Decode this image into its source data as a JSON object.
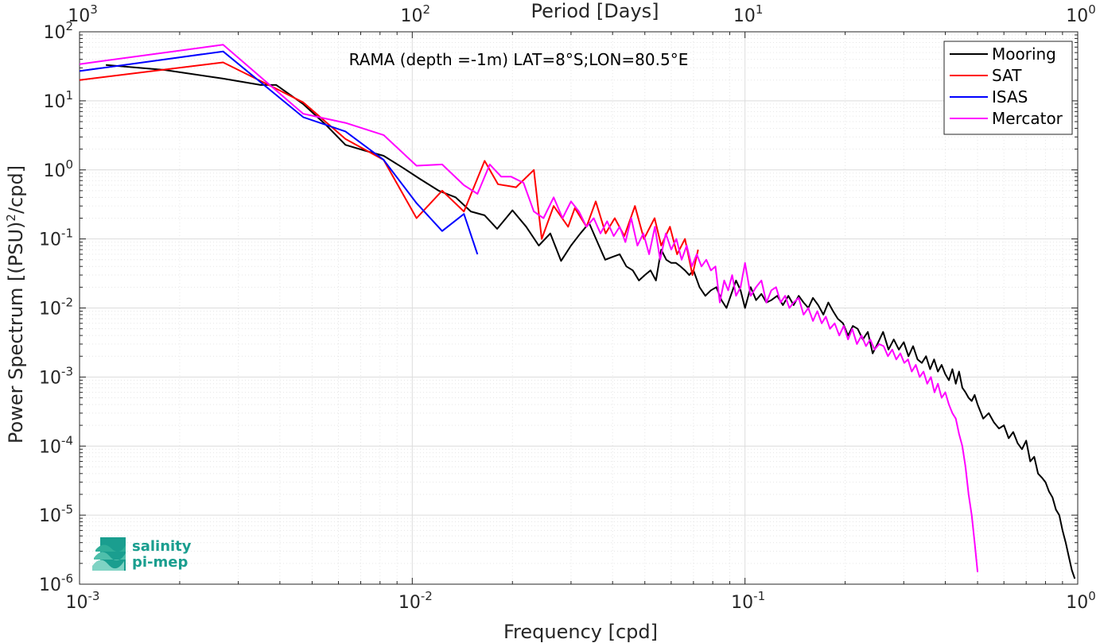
{
  "chart_data": {
    "type": "line",
    "title": "",
    "annotation": "RAMA (depth =-1m) LAT=8°S;LON=80.5°E",
    "xlabel": "Frequency [cpd]",
    "ylabel": "Power Spectrum [(PSU)²/cpd]",
    "ylabel_parts": {
      "before": "Power Spectrum [(PSU)",
      "sup": "2",
      "after": "/cpd]"
    },
    "top_xlabel": "Period [Days]",
    "xscale": "log",
    "yscale": "log",
    "xlim": [
      0.001,
      1
    ],
    "ylim": [
      1e-06,
      100
    ],
    "grid": true,
    "legend_position": "top-right",
    "x_ticks": [
      {
        "value": 0.001,
        "base": "10",
        "exp": "-3"
      },
      {
        "value": 0.01,
        "base": "10",
        "exp": "-2"
      },
      {
        "value": 0.1,
        "base": "10",
        "exp": "-1"
      },
      {
        "value": 1,
        "base": "10",
        "exp": "0"
      }
    ],
    "y_ticks": [
      {
        "value": 100,
        "base": "10",
        "exp": "2"
      },
      {
        "value": 10,
        "base": "10",
        "exp": "1"
      },
      {
        "value": 1,
        "base": "10",
        "exp": "0"
      },
      {
        "value": 0.1,
        "base": "10",
        "exp": "-1"
      },
      {
        "value": 0.01,
        "base": "10",
        "exp": "-2"
      },
      {
        "value": 0.001,
        "base": "10",
        "exp": "-3"
      },
      {
        "value": 0.0001,
        "base": "10",
        "exp": "-4"
      },
      {
        "value": 1e-05,
        "base": "10",
        "exp": "-5"
      },
      {
        "value": 1e-06,
        "base": "10",
        "exp": "-6"
      }
    ],
    "top_ticks": [
      {
        "value": 0.001,
        "base": "10",
        "exp": "3"
      },
      {
        "value": 0.01,
        "base": "10",
        "exp": "2"
      },
      {
        "value": 0.1,
        "base": "10",
        "exp": "1"
      },
      {
        "value": 1,
        "base": "10",
        "exp": "0"
      }
    ],
    "series": [
      {
        "name": "Mooring",
        "color": "#000000",
        "x": [
          0.0012,
          0.0018,
          0.0027,
          0.0035,
          0.0039,
          0.0047,
          0.0055,
          0.0063,
          0.0072,
          0.0082,
          0.0093,
          0.0105,
          0.012,
          0.0135,
          0.015,
          0.0165,
          0.018,
          0.02,
          0.022,
          0.024,
          0.026,
          0.028,
          0.03,
          0.032,
          0.034,
          0.036,
          0.038,
          0.04,
          0.042,
          0.044,
          0.046,
          0.048,
          0.05,
          0.052,
          0.054,
          0.056,
          0.058,
          0.06,
          0.062,
          0.064,
          0.066,
          0.068,
          0.07,
          0.073,
          0.076,
          0.079,
          0.082,
          0.085,
          0.088,
          0.091,
          0.094,
          0.097,
          0.1,
          0.104,
          0.108,
          0.112,
          0.116,
          0.12,
          0.125,
          0.13,
          0.135,
          0.14,
          0.145,
          0.15,
          0.155,
          0.16,
          0.166,
          0.172,
          0.178,
          0.184,
          0.19,
          0.197,
          0.204,
          0.211,
          0.218,
          0.226,
          0.234,
          0.242,
          0.25,
          0.26,
          0.27,
          0.28,
          0.29,
          0.3,
          0.31,
          0.32,
          0.33,
          0.34,
          0.35,
          0.36,
          0.37,
          0.38,
          0.39,
          0.4,
          0.41,
          0.42,
          0.43,
          0.44,
          0.45,
          0.46,
          0.47,
          0.48,
          0.49,
          0.5,
          0.52,
          0.54,
          0.56,
          0.58,
          0.6,
          0.62,
          0.64,
          0.66,
          0.68,
          0.7,
          0.72,
          0.74,
          0.76,
          0.78,
          0.8,
          0.82,
          0.84,
          0.86,
          0.88,
          0.9,
          0.92,
          0.94,
          0.96,
          0.98
        ],
        "y": [
          33,
          28,
          21,
          17,
          17,
          9,
          4.5,
          2.3,
          1.9,
          1.6,
          1.1,
          0.75,
          0.5,
          0.4,
          0.25,
          0.22,
          0.14,
          0.26,
          0.15,
          0.08,
          0.12,
          0.048,
          0.08,
          0.12,
          0.17,
          0.09,
          0.05,
          0.055,
          0.06,
          0.04,
          0.035,
          0.025,
          0.03,
          0.035,
          0.025,
          0.07,
          0.05,
          0.045,
          0.045,
          0.04,
          0.035,
          0.03,
          0.035,
          0.02,
          0.015,
          0.018,
          0.02,
          0.013,
          0.01,
          0.016,
          0.025,
          0.018,
          0.01,
          0.02,
          0.013,
          0.016,
          0.012,
          0.013,
          0.015,
          0.011,
          0.015,
          0.011,
          0.015,
          0.012,
          0.01,
          0.014,
          0.011,
          0.008,
          0.012,
          0.009,
          0.007,
          0.006,
          0.004,
          0.0055,
          0.005,
          0.0035,
          0.0045,
          0.0022,
          0.003,
          0.0045,
          0.0025,
          0.0035,
          0.0025,
          0.0032,
          0.002,
          0.0028,
          0.0018,
          0.0016,
          0.002,
          0.0013,
          0.0018,
          0.0012,
          0.0015,
          0.0011,
          0.0009,
          0.0013,
          0.0008,
          0.0012,
          0.0007,
          0.0006,
          0.0005,
          0.00045,
          0.00055,
          0.0004,
          0.00025,
          0.0003,
          0.00022,
          0.00018,
          0.0002,
          0.00013,
          0.00016,
          0.00011,
          9e-05,
          0.00012,
          6e-05,
          7e-05,
          4e-05,
          3.5e-05,
          3e-05,
          2.2e-05,
          1.8e-05,
          1.2e-05,
          1e-05,
          6e-06,
          4e-06,
          2.5e-06,
          1.6e-06,
          1.2e-06
        ]
      },
      {
        "name": "SAT",
        "color": "#ff0000",
        "x": [
          0.001,
          0.0027,
          0.0039,
          0.0047,
          0.0063,
          0.0082,
          0.0103,
          0.0123,
          0.0143,
          0.0165,
          0.0181,
          0.0205,
          0.0232,
          0.0245,
          0.0266,
          0.0294,
          0.0308,
          0.0334,
          0.0356,
          0.0381,
          0.0406,
          0.0434,
          0.0467,
          0.0497,
          0.0535,
          0.056,
          0.0595,
          0.0625,
          0.066,
          0.0695,
          0.0723
        ],
        "y": [
          20,
          36,
          15,
          9.5,
          2.8,
          1.4,
          0.2,
          0.5,
          0.25,
          1.35,
          0.62,
          0.56,
          1.0,
          0.1,
          0.3,
          0.15,
          0.28,
          0.15,
          0.35,
          0.12,
          0.2,
          0.11,
          0.3,
          0.1,
          0.2,
          0.08,
          0.15,
          0.06,
          0.1,
          0.03,
          0.07
        ]
      },
      {
        "name": "ISAS",
        "color": "#0000ff",
        "x": [
          0.001,
          0.0027,
          0.0047,
          0.0063,
          0.0082,
          0.0103,
          0.0123,
          0.0143,
          0.0157
        ],
        "y": [
          27,
          52,
          5.8,
          3.6,
          1.4,
          0.33,
          0.13,
          0.23,
          0.06
        ]
      },
      {
        "name": "Mercator",
        "color": "#ff00ff",
        "x": [
          0.001,
          0.0027,
          0.0047,
          0.0063,
          0.0082,
          0.0103,
          0.0123,
          0.0143,
          0.0157,
          0.0171,
          0.0185,
          0.0198,
          0.0216,
          0.0232,
          0.0248,
          0.0266,
          0.0283,
          0.03,
          0.0317,
          0.0334,
          0.0351,
          0.0368,
          0.0385,
          0.0403,
          0.042,
          0.0437,
          0.0455,
          0.0475,
          0.0495,
          0.0515,
          0.0536,
          0.0556,
          0.0578,
          0.06,
          0.0622,
          0.0645,
          0.0668,
          0.0692,
          0.0716,
          0.074,
          0.0765,
          0.079,
          0.0815,
          0.084,
          0.0866,
          0.089,
          0.0915,
          0.094,
          0.097,
          0.1,
          0.104,
          0.108,
          0.112,
          0.116,
          0.12,
          0.124,
          0.128,
          0.132,
          0.136,
          0.14,
          0.145,
          0.15,
          0.155,
          0.16,
          0.165,
          0.17,
          0.175,
          0.18,
          0.186,
          0.192,
          0.198,
          0.204,
          0.21,
          0.217,
          0.224,
          0.231,
          0.238,
          0.245,
          0.253,
          0.261,
          0.269,
          0.277,
          0.285,
          0.293,
          0.301,
          0.309,
          0.317,
          0.326,
          0.335,
          0.344,
          0.353,
          0.362,
          0.371,
          0.38,
          0.39,
          0.4,
          0.41,
          0.42,
          0.43,
          0.44,
          0.45,
          0.46,
          0.47,
          0.48,
          0.49,
          0.5
        ],
        "y": [
          34,
          65,
          6.5,
          4.8,
          3.2,
          1.15,
          1.2,
          0.6,
          0.45,
          1.2,
          0.8,
          0.8,
          0.65,
          0.25,
          0.2,
          0.4,
          0.2,
          0.35,
          0.25,
          0.15,
          0.2,
          0.12,
          0.18,
          0.11,
          0.15,
          0.09,
          0.2,
          0.08,
          0.12,
          0.06,
          0.15,
          0.05,
          0.12,
          0.07,
          0.1,
          0.05,
          0.08,
          0.04,
          0.06,
          0.04,
          0.05,
          0.035,
          0.04,
          0.012,
          0.025,
          0.018,
          0.03,
          0.015,
          0.02,
          0.045,
          0.015,
          0.02,
          0.025,
          0.012,
          0.018,
          0.02,
          0.012,
          0.015,
          0.01,
          0.012,
          0.014,
          0.008,
          0.01,
          0.0065,
          0.009,
          0.006,
          0.0075,
          0.005,
          0.006,
          0.004,
          0.0055,
          0.0035,
          0.005,
          0.003,
          0.004,
          0.0028,
          0.0035,
          0.0025,
          0.003,
          0.0028,
          0.002,
          0.0025,
          0.0018,
          0.0022,
          0.0016,
          0.0018,
          0.0012,
          0.0015,
          0.001,
          0.0012,
          0.0008,
          0.001,
          0.0006,
          0.0008,
          0.0005,
          0.0006,
          0.0004,
          0.0003,
          0.00025,
          0.00015,
          0.0001,
          5e-05,
          2e-05,
          1e-05,
          4e-06,
          1.5e-06
        ]
      }
    ]
  },
  "logo": {
    "line1": "salinity",
    "line2": "pi-mep",
    "color": "#1a9e8f"
  }
}
